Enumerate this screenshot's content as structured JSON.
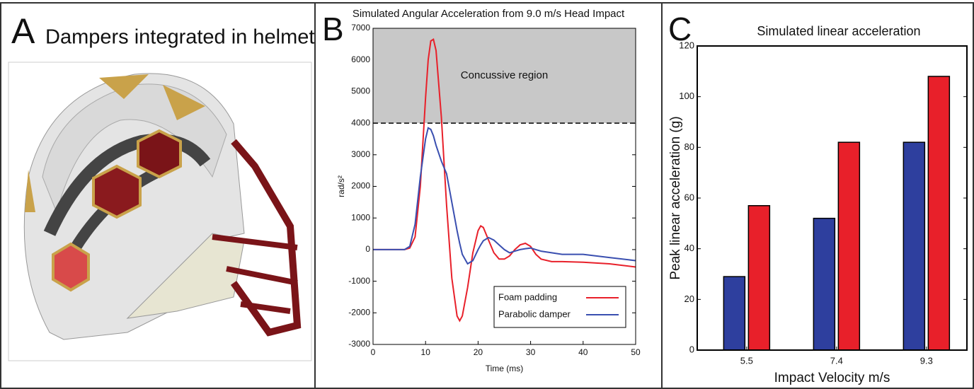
{
  "panel_a": {
    "letter": "A",
    "title": "Dampers integrated in helmet"
  },
  "chart_data": [
    {
      "type": "line",
      "panel_label": "B",
      "title": "Simulated Angular Acceleration from 9.0 m/s Head Impact",
      "x_label": "Time (ms)",
      "y_label": "rad/s²",
      "annotation": "Concussive region",
      "threshold": 4000,
      "x": [
        0,
        2,
        4,
        6,
        7,
        8,
        9,
        10,
        10.5,
        11,
        11.5,
        12,
        13,
        14,
        15,
        16,
        16.5,
        17,
        18,
        19,
        20,
        20.5,
        21,
        22,
        23,
        24,
        25,
        26,
        27,
        28,
        29,
        30,
        31,
        32,
        34,
        36,
        40,
        45,
        50
      ],
      "series": [
        {
          "name": "Foam padding",
          "color": "#e8202a",
          "values": [
            0,
            0,
            0,
            0,
            50,
            400,
            2000,
            4800,
            6000,
            6600,
            6650,
            6300,
            4200,
            1400,
            -900,
            -2100,
            -2250,
            -2100,
            -1200,
            -100,
            600,
            750,
            700,
            300,
            -100,
            -300,
            -300,
            -200,
            0,
            150,
            200,
            100,
            -150,
            -300,
            -380,
            -380,
            -400,
            -450,
            -550
          ]
        },
        {
          "name": "Parabolic damper",
          "color": "#3a4fb0",
          "values": [
            0,
            0,
            0,
            0,
            100,
            800,
            2300,
            3500,
            3850,
            3800,
            3600,
            3300,
            2800,
            2400,
            1500,
            600,
            200,
            -150,
            -450,
            -350,
            0,
            150,
            280,
            380,
            300,
            150,
            0,
            -100,
            -50,
            0,
            30,
            50,
            0,
            -50,
            -100,
            -150,
            -150,
            -250,
            -350
          ]
        }
      ],
      "xlim": [
        0,
        50
      ],
      "xticks": [
        0,
        10,
        20,
        30,
        40,
        50
      ],
      "ylim": [
        -3000,
        7000
      ],
      "yticks": [
        -3000,
        -2000,
        -1000,
        0,
        1000,
        2000,
        3000,
        4000,
        5000,
        6000,
        7000
      ],
      "legend": "lower right"
    },
    {
      "type": "bar",
      "panel_label": "C",
      "title": "Simulated linear acceleration",
      "x_label": "Impact Velocity m/s",
      "y_label": "Peak linear acceleration (g)",
      "categories": [
        "5.5",
        "7.4",
        "9.3"
      ],
      "series": [
        {
          "color": "#2e3f9e",
          "values": [
            29,
            52,
            82
          ]
        },
        {
          "color": "#e8202a",
          "values": [
            57,
            82,
            108
          ]
        }
      ],
      "ylim": [
        0,
        120
      ],
      "yticks": [
        0,
        20,
        40,
        60,
        80,
        100,
        120
      ]
    }
  ]
}
